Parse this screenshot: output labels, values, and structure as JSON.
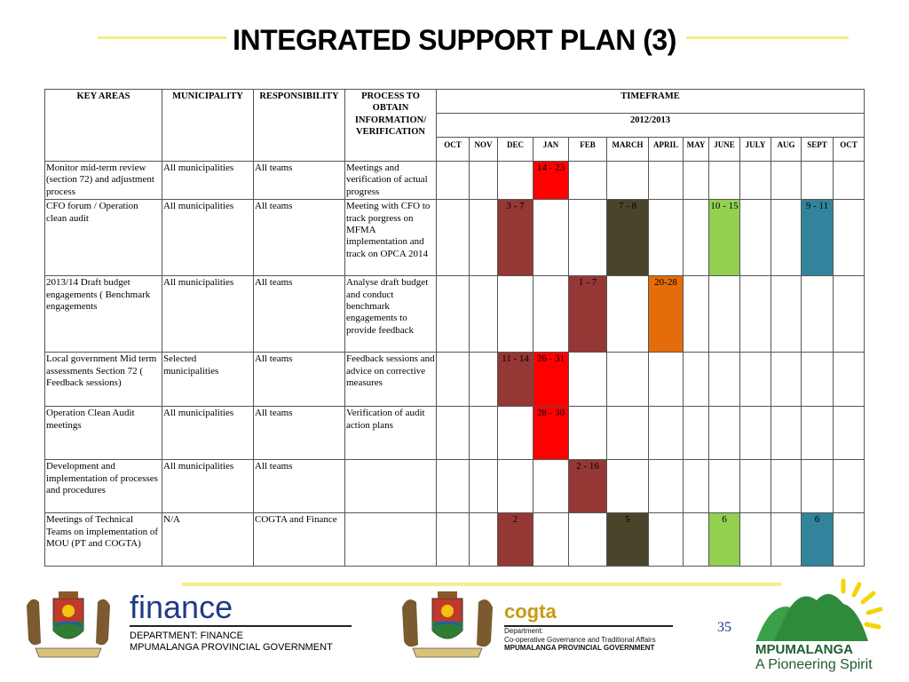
{
  "title": "INTEGRATED SUPPORT PLAN (3)",
  "colors": {
    "red": "#ff0000",
    "maroon": "#953735",
    "olive": "#4a452a",
    "orange": "#e46c0a",
    "lime": "#92d050",
    "teal": "#31849b",
    "title_line": "#f2ee7a"
  },
  "table": {
    "headers": {
      "key_areas": "KEY AREAS",
      "municipality": "MUNICIPALITY",
      "responsibility": "RESPONSIBILITY",
      "process": "PROCESS TO OBTAIN INFORMATION/ VERIFICATION",
      "timeframe": "TIMEFRAME",
      "year": "2012/2013"
    },
    "months": [
      "OCT",
      "NOV",
      "DEC",
      "JAN",
      "FEB",
      "MARCH",
      "APRIL",
      "MAY",
      "JUNE",
      "JULY",
      "AUG",
      "SEPT",
      "OCT"
    ],
    "rows": [
      {
        "key_area": "Monitor mid-term review (section 72) and adjustment process",
        "municipality": "All municipalities",
        "responsibility": "All teams",
        "process": "Meetings and verification of actual progress",
        "cells": [
          {
            "month": 3,
            "text": "14 - 23",
            "color": "red"
          }
        ]
      },
      {
        "key_area": "CFO forum / Operation clean audit",
        "municipality": "All municipalities",
        "responsibility": "All teams",
        "process": "Meeting with CFO to track porgress on MFMA implementation and track on OPCA 2014",
        "cells": [
          {
            "month": 2,
            "text": "3 - 7",
            "color": "maroon"
          },
          {
            "month": 5,
            "text": "7 -  8",
            "color": "olive"
          },
          {
            "month": 8,
            "text": "10 - 15",
            "color": "lime"
          },
          {
            "month": 11,
            "text": "9 - 11",
            "color": "teal"
          }
        ]
      },
      {
        "key_area": "2013/14 Draft budget engagements ( Benchmark engagements",
        "municipality": "All municipalities",
        "responsibility": "All teams",
        "process": "Analyse draft budget and conduct benchmark engagements to provide feedback",
        "cells": [
          {
            "month": 4,
            "text": "1 - 7",
            "color": "maroon"
          },
          {
            "month": 6,
            "text": "20-28",
            "color": "orange"
          }
        ]
      },
      {
        "key_area": "Local government Mid term assessments Section 72 ( Feedback sessions)",
        "municipality": "Selected municipalities",
        "responsibility": "All teams",
        "process": "Feedback sessions and advice on corrective measures",
        "cells": [
          {
            "month": 2,
            "text": "11 - 14",
            "color": "maroon"
          },
          {
            "month": 3,
            "text": "26 - 31",
            "color": "red"
          }
        ]
      },
      {
        "key_area": "Operation Clean Audit meetings",
        "municipality": "All municipalities",
        "responsibility": "All teams",
        "process": "Verification of audit action plans",
        "cells": [
          {
            "month": 3,
            "text": "28 - 30",
            "color": "red"
          }
        ]
      },
      {
        "key_area": "Development and implementation of processes and procedures",
        "municipality": "All municipalities",
        "responsibility": "All teams",
        "process": "",
        "cells": [
          {
            "month": 4,
            "text": "2 - 16",
            "color": "maroon"
          }
        ]
      },
      {
        "key_area": "Meetings of Technical Teams on implementation of MOU (PT and COGTA)",
        "municipality": "N/A",
        "responsibility": "COGTA and Finance",
        "process": "",
        "cells": [
          {
            "month": 2,
            "text": "2",
            "color": "maroon"
          },
          {
            "month": 5,
            "text": "5",
            "color": "olive"
          },
          {
            "month": 8,
            "text": "6",
            "color": "lime"
          },
          {
            "month": 11,
            "text": "6",
            "color": "teal"
          }
        ]
      }
    ]
  },
  "footer": {
    "finance_logo": "finance",
    "department_line1": "DEPARTMENT: FINANCE",
    "department_line2": "MPUMALANGA PROVINCIAL GOVERNMENT",
    "cogta_logo": "cogta",
    "cogta_line1": "Department:",
    "cogta_line2": "Co-operative Governance and Traditional Affairs",
    "cogta_line3": "MPUMALANGA PROVINCIAL GOVERNMENT",
    "page_number": "35",
    "mpumalanga": "MPUMALANGA",
    "tagline": "A Pioneering Spirit"
  }
}
